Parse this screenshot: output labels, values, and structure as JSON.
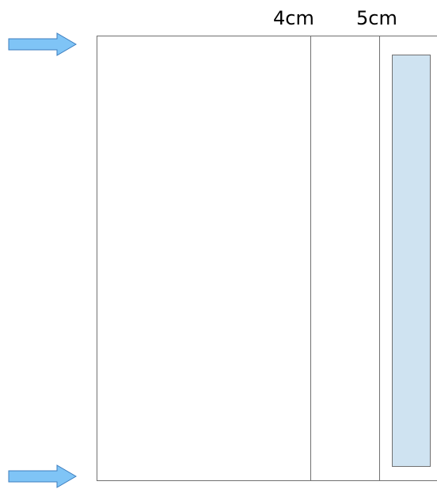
{
  "labels": {
    "left_measure": "4cm",
    "right_measure": "5cm"
  },
  "colors": {
    "arrow_fill": "#7fc4f6",
    "arrow_stroke": "#3d7ebf",
    "panel_fill": "#cfe3f1",
    "line": "#707070"
  }
}
